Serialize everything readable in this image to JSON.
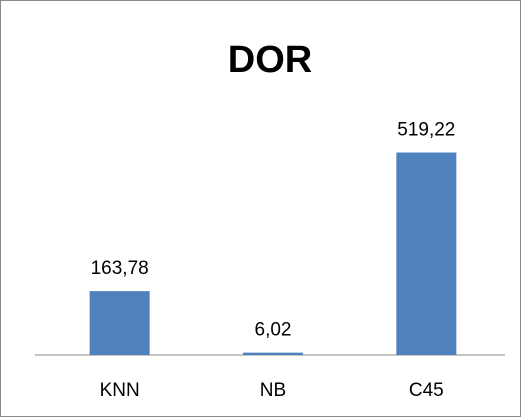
{
  "chart_data": {
    "type": "bar",
    "title": "DOR",
    "categories": [
      "KNN",
      "NB",
      "C45"
    ],
    "values": [
      163.78,
      6.02,
      519.22
    ],
    "value_labels": [
      "163,78",
      "6,02",
      "519,22"
    ],
    "color": "#4f81bd"
  }
}
